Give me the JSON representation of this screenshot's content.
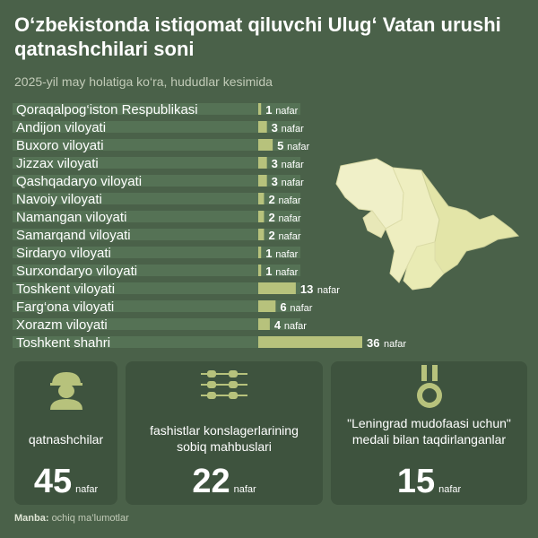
{
  "title": "O‘zbekistonda istiqomat qiluvchi Ulug‘ Vatan urushi qatnashchilari soni",
  "subtitle": "2025-yil may holatiga ko‘ra, hududlar kesimida",
  "unit": "nafar",
  "colors": {
    "background": "#4a6149",
    "bar": "#b7c27c",
    "track": "#557255",
    "card": "#3e533e",
    "map": "#f0f0c8"
  },
  "chart_data": {
    "type": "bar",
    "orientation": "horizontal",
    "categories": [
      "Qoraqalpog‘iston Respublikasi",
      "Andijon viloyati",
      "Buxoro viloyati",
      "Jizzax viloyati",
      "Qashqadaryo viloyati",
      "Navoiy viloyati",
      "Namangan viloyati",
      "Samarqand viloyati",
      "Sirdaryo viloyati",
      "Surxondaryo viloyati",
      "Toshkent viloyati",
      "Farg‘ona viloyati",
      "Xorazm viloyati",
      "Toshkent shahri"
    ],
    "values": [
      1,
      3,
      5,
      3,
      3,
      2,
      2,
      2,
      1,
      1,
      13,
      6,
      4,
      36
    ],
    "value_suffix": "nafar"
  },
  "cards": [
    {
      "icon": "soldier-icon",
      "label": "qatnashchilar",
      "value": "45",
      "unit": "nafar"
    },
    {
      "icon": "barbed-wire-icon",
      "label": "fashistlar konslagerlarining sobiq mahbuslari",
      "value": "22",
      "unit": "nafar"
    },
    {
      "icon": "medal-icon",
      "label": "\"Leningrad mudofaasi uchun\" medali bilan taqdirlanganlar",
      "value": "15",
      "unit": "nafar"
    }
  ],
  "source": {
    "label": "Manba:",
    "text": "ochiq ma’lumotlar"
  }
}
